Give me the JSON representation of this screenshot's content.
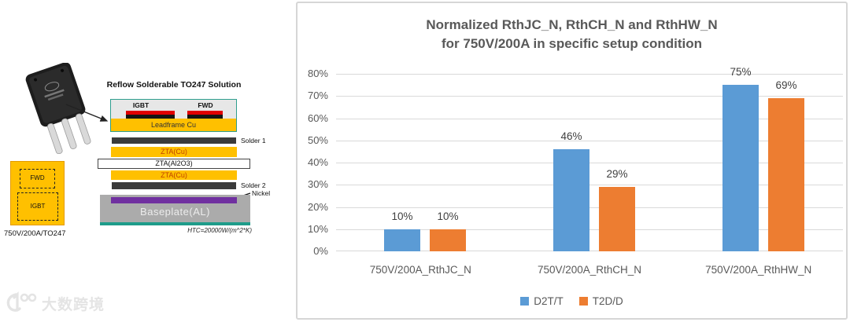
{
  "watermark": {
    "brand_text": "大数跨境"
  },
  "diagram": {
    "solution_title": "Reflow Solderable TO247 Solution",
    "die_labels": [
      "IGBT",
      "FWD"
    ],
    "layers": {
      "leadframe": "Leadframe Cu",
      "solder1": "Solder 1",
      "zta_cu_top": "ZTA(Cu)",
      "zta_al2o3": "ZTA(Al2O3)",
      "zta_cu_bottom": "ZTA(Cu)",
      "solder2": "Solder 2",
      "nickel": "Nickel",
      "baseplate": "Baseplate(AL)"
    },
    "htc_note": "HTC=20000W/(m^2*K)",
    "chip": {
      "fwd": "FWD",
      "igbt": "IGBT",
      "caption": "750V/200A/TO247"
    }
  },
  "chart_data": {
    "type": "bar",
    "title_line1": "Normalized RthJC_N, RthCH_N and RthHW_N",
    "title_line2": "for 750V/200A in specific setup condition",
    "categories": [
      "750V/200A_RthJC_N",
      "750V/200A_RthCH_N",
      "750V/200A_RthHW_N"
    ],
    "series": [
      {
        "name": "D2T/T",
        "color": "#5B9BD5",
        "values": [
          10,
          46,
          75
        ],
        "labels": [
          "10%",
          "46%",
          "75%"
        ]
      },
      {
        "name": "T2D/D",
        "color": "#ED7D31",
        "values": [
          10,
          29,
          69
        ],
        "labels": [
          "10%",
          "29%",
          "69%"
        ]
      }
    ],
    "ylim": [
      0,
      80
    ],
    "ytick_step": 10,
    "ytick_labels": [
      "0%",
      "10%",
      "20%",
      "30%",
      "40%",
      "50%",
      "60%",
      "70%",
      "80%"
    ],
    "grid": true,
    "legend_position": "bottom",
    "xlabel": "",
    "ylabel": ""
  }
}
